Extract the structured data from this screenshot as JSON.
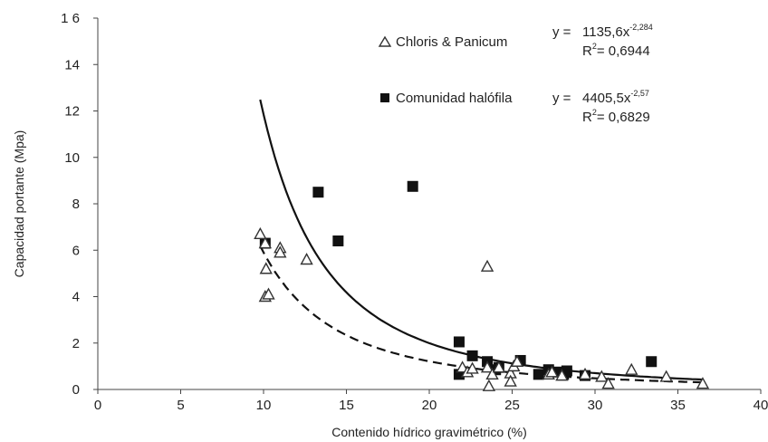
{
  "chart_data": {
    "type": "scatter",
    "xlabel": "Contenido hídrico gravimétrico (%)",
    "ylabel": "Capacidad portante (Mpa)",
    "xlim": [
      0,
      40
    ],
    "ylim": [
      0,
      16
    ],
    "x_ticks": [
      "0",
      "5",
      "10",
      "15",
      "20",
      "25",
      "30",
      "35",
      "40"
    ],
    "y_ticks": [
      "0",
      "2",
      "4",
      "6",
      "8",
      "10",
      "12",
      "14",
      "1 6"
    ],
    "grid": false,
    "legend_position": "top-center",
    "series": [
      {
        "name": "Chloris & Panicum",
        "marker": "triangle-open",
        "color": "#333333",
        "points": [
          [
            9.8,
            6.7
          ],
          [
            10.1,
            6.3
          ],
          [
            10.15,
            5.2
          ],
          [
            10.1,
            4.0
          ],
          [
            10.3,
            4.1
          ],
          [
            11.0,
            6.1
          ],
          [
            11.0,
            5.9
          ],
          [
            12.6,
            5.6
          ],
          [
            23.5,
            5.3
          ],
          [
            22.0,
            0.95
          ],
          [
            22.3,
            0.75
          ],
          [
            22.6,
            0.9
          ],
          [
            23.5,
            0.95
          ],
          [
            23.6,
            0.15
          ],
          [
            23.8,
            0.65
          ],
          [
            24.2,
            0.95
          ],
          [
            24.9,
            0.7
          ],
          [
            24.9,
            0.35
          ],
          [
            25.1,
            1.0
          ],
          [
            25.3,
            1.2
          ],
          [
            27.2,
            0.65
          ],
          [
            27.4,
            0.75
          ],
          [
            28.0,
            0.6
          ],
          [
            29.4,
            0.65
          ],
          [
            30.4,
            0.55
          ],
          [
            30.8,
            0.25
          ],
          [
            32.2,
            0.85
          ],
          [
            34.3,
            0.55
          ],
          [
            36.5,
            0.25
          ]
        ],
        "fit": {
          "a": 1135.6,
          "b": -2.284,
          "x_range": [
            9.8,
            36.5
          ],
          "style": "dashed"
        }
      },
      {
        "name": "Comunidad halófila",
        "marker": "square-filled",
        "color": "#111111",
        "points": [
          [
            10.1,
            6.3
          ],
          [
            13.3,
            8.5
          ],
          [
            14.5,
            6.4
          ],
          [
            19.0,
            8.75
          ],
          [
            21.8,
            2.05
          ],
          [
            21.8,
            0.65
          ],
          [
            22.6,
            1.45
          ],
          [
            23.5,
            1.2
          ],
          [
            24.0,
            0.85
          ],
          [
            24.2,
            0.95
          ],
          [
            25.5,
            1.25
          ],
          [
            26.6,
            0.65
          ],
          [
            27.2,
            0.85
          ],
          [
            27.8,
            0.75
          ],
          [
            28.3,
            0.8
          ],
          [
            28.1,
            0.65
          ],
          [
            29.4,
            0.6
          ],
          [
            33.4,
            1.2
          ]
        ],
        "fit": {
          "a": 4405.5,
          "b": -2.57,
          "x_range": [
            9.8,
            36.5
          ],
          "style": "solid"
        }
      }
    ],
    "equations": [
      {
        "y_prefix": "y =",
        "coef": "1135,6x",
        "exp": "-2,284",
        "r2_label": "R",
        "r2_sup": "2",
        "r2_value": "= 0,6944"
      },
      {
        "y_prefix": "y =",
        "coef": "4405,5x",
        "exp": "-2,57",
        "r2_label": "R",
        "r2_sup": "2",
        "r2_value": "= 0,6829"
      }
    ]
  }
}
